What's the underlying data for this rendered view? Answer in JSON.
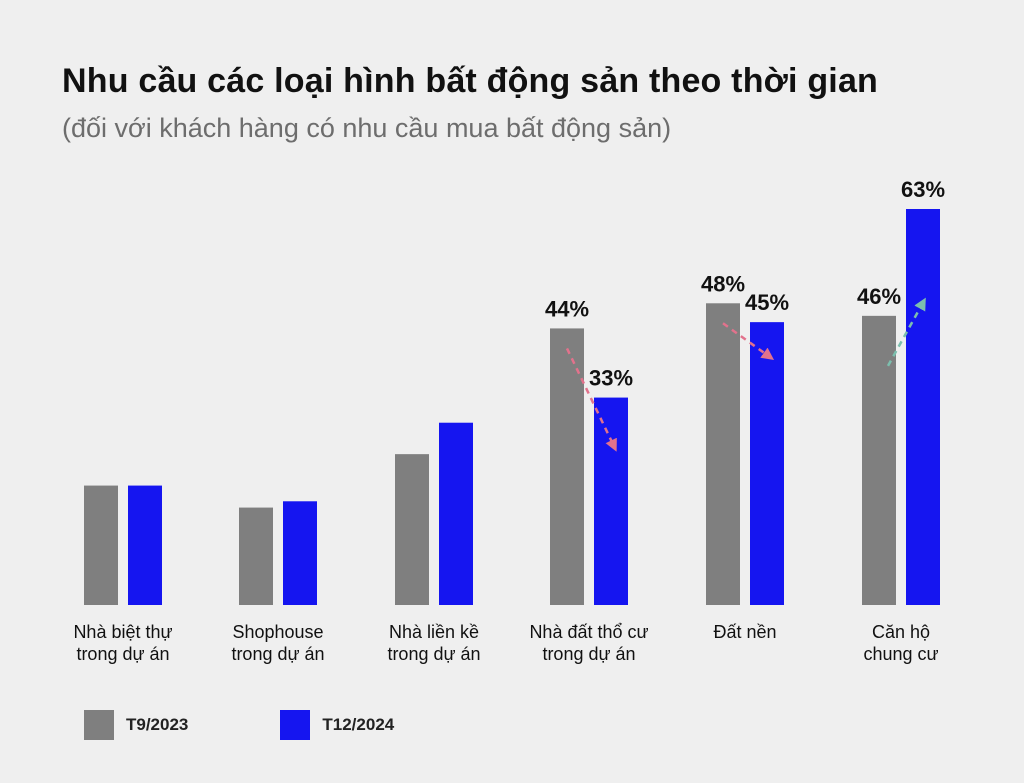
{
  "chart_data": {
    "type": "bar",
    "title": "Nhu cầu các loại hình bất động sản theo thời gian",
    "subtitle": "(đối với khách hàng có nhu cầu mua bất động sản)",
    "categories": [
      [
        "Nhà biệt thự",
        "trong dự án"
      ],
      [
        "Shophouse",
        "trong dự án"
      ],
      [
        "Nhà liền kề",
        "trong dự án"
      ],
      [
        "Nhà đất thổ cư",
        "trong dự án"
      ],
      [
        "Đất nền"
      ],
      [
        "Căn hộ",
        "chung cư"
      ]
    ],
    "series": [
      {
        "name": "T9/2023",
        "color": "#7f7f7f",
        "values": [
          19,
          15.5,
          24,
          44,
          48,
          46
        ],
        "labels": [
          "",
          "",
          "",
          "44%",
          "48%",
          "46%"
        ]
      },
      {
        "name": "T12/2024",
        "color": "#1515f0",
        "values": [
          19,
          16.5,
          29,
          33,
          45,
          63
        ],
        "labels": [
          "",
          "",
          "",
          "33%",
          "45%",
          "63%"
        ]
      }
    ],
    "trend_arrows": [
      {
        "category_index": 3,
        "direction": "down",
        "color": "#e2728c"
      },
      {
        "category_index": 4,
        "direction": "down",
        "color": "#e2728c"
      },
      {
        "category_index": 5,
        "direction": "up",
        "color": "#7cbfae"
      }
    ],
    "ylim": [
      0,
      70
    ],
    "grid": false,
    "legend_position": "bottom-left"
  }
}
